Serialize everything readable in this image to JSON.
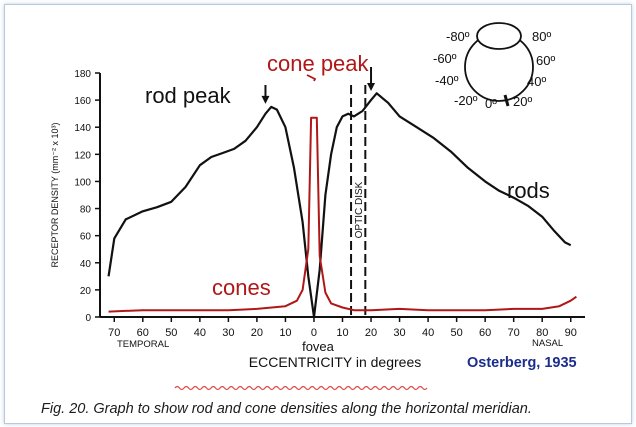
{
  "colors": {
    "rods": "#111111",
    "cones": "#b01818",
    "text": "#111111",
    "credit": "#1b2d8c",
    "squiggle": "#e04a4a"
  },
  "chart_data": {
    "type": "line",
    "ylabel": "RECEPTOR DENSITY (mm⁻² x 10³)",
    "xlabel": "ECCENTRICITY in degrees",
    "xlim": [
      -75,
      95
    ],
    "ylim": [
      0,
      180
    ],
    "x_ticks": [
      -70,
      -60,
      -50,
      -40,
      -30,
      -20,
      -10,
      0,
      10,
      20,
      30,
      40,
      50,
      60,
      70,
      80,
      90
    ],
    "x_tick_labels": [
      "70",
      "60",
      "50",
      "40",
      "30",
      "20",
      "10",
      "0",
      "10",
      "20",
      "30",
      "40",
      "50",
      "60",
      "70",
      "80",
      "90"
    ],
    "y_ticks": [
      0,
      20,
      40,
      60,
      80,
      100,
      120,
      140,
      160,
      180
    ],
    "y_tick_labels": [
      "0",
      "20",
      "40",
      "60",
      "80",
      "100",
      "120",
      "140",
      "160",
      "180"
    ],
    "series": [
      {
        "name": "rods",
        "x": [
          -72,
          -70,
          -66,
          -60,
          -55,
          -50,
          -45,
          -40,
          -36,
          -32,
          -28,
          -24,
          -20,
          -17,
          -15,
          -13,
          -10,
          -7,
          -4,
          -2,
          0,
          2,
          4,
          6,
          8,
          10,
          12,
          14,
          17,
          20,
          22,
          26,
          30,
          36,
          42,
          48,
          54,
          60,
          65,
          70,
          75,
          80,
          84,
          88,
          90
        ],
        "y": [
          30,
          58,
          72,
          78,
          81,
          85,
          96,
          112,
          118,
          121,
          124,
          130,
          140,
          150,
          155,
          153,
          140,
          110,
          70,
          30,
          0,
          35,
          90,
          120,
          140,
          148,
          150,
          148,
          152,
          160,
          165,
          158,
          148,
          140,
          132,
          122,
          110,
          100,
          93,
          88,
          82,
          74,
          64,
          55,
          53
        ]
      },
      {
        "name": "cones",
        "x": [
          -72,
          -60,
          -50,
          -40,
          -30,
          -20,
          -10,
          -6,
          -4,
          -2,
          -1,
          0,
          1,
          2,
          4,
          6,
          10,
          14,
          20,
          30,
          40,
          50,
          60,
          70,
          80,
          86,
          90,
          92
        ],
        "y": [
          4,
          5,
          5,
          5,
          5,
          6,
          8,
          12,
          20,
          50,
          147,
          147,
          147,
          45,
          18,
          10,
          7,
          5,
          5,
          6,
          5,
          5,
          5,
          6,
          6,
          8,
          12,
          15
        ]
      }
    ],
    "optic_disk": {
      "x_from": 13,
      "x_to": 18,
      "label": "OPTIC DISK"
    },
    "annotations": [
      {
        "text": "rod peak",
        "x": -17,
        "y": 155
      },
      {
        "text": "cone peak",
        "x": 0,
        "y": 147
      },
      {
        "text": "rods",
        "x": 75,
        "y": 92
      },
      {
        "text": "cones",
        "x": -25,
        "y": 22
      },
      {
        "text": "fovea",
        "x": 0,
        "y": 0
      }
    ],
    "sublabels": {
      "temporal": "TEMPORAL",
      "nasal": "NASAL"
    },
    "inset_eye_labels": [
      "-80º",
      "80º",
      "-60º",
      "60º",
      "-40º",
      "40º",
      "-20º",
      "0º",
      "20º"
    ],
    "credit": "Osterberg, 1935"
  },
  "caption": "Fig. 20. Graph to show rod and cone densities along the horizontal meridian."
}
